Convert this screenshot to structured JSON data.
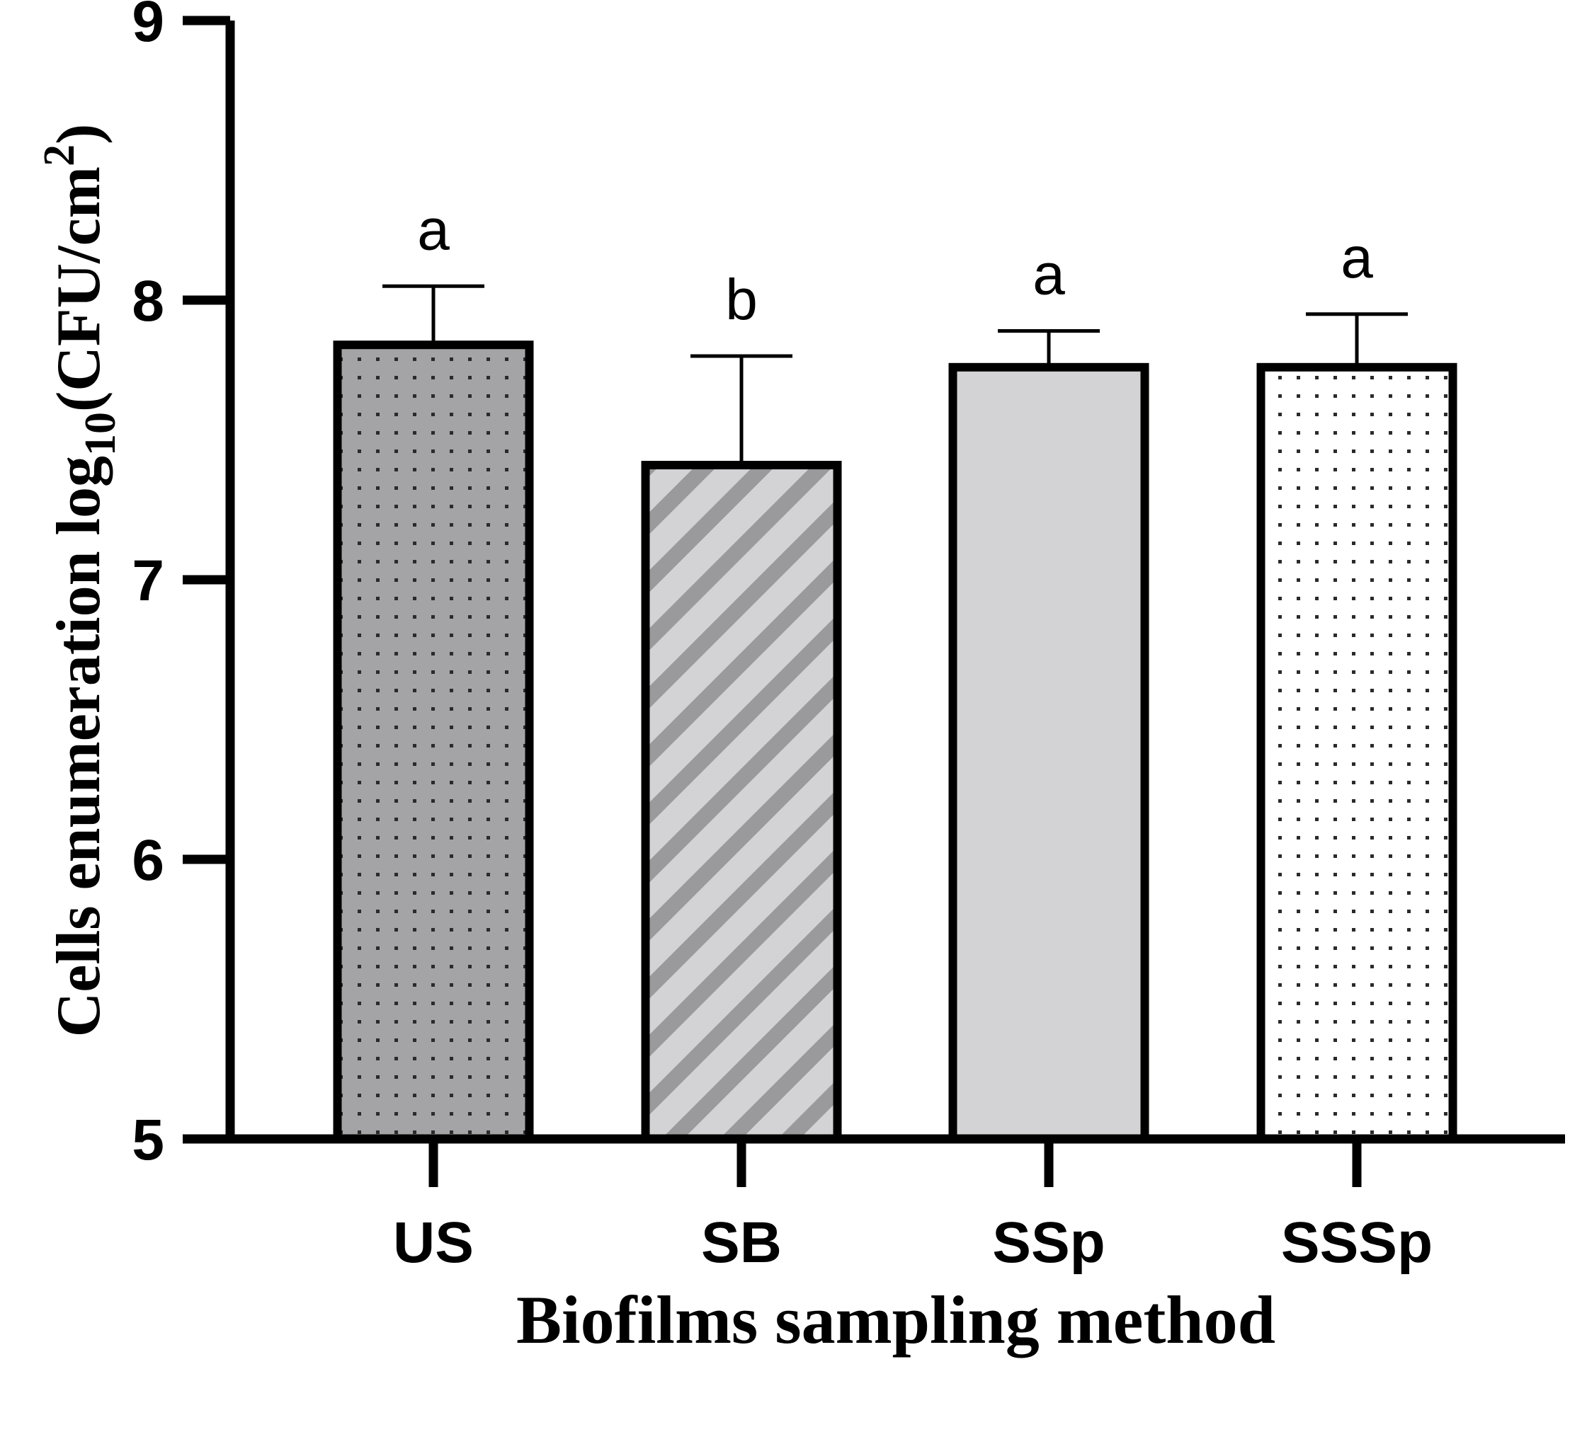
{
  "chart_data": {
    "type": "bar",
    "categories": [
      "US",
      "SB",
      "SSp",
      "SSSp"
    ],
    "values": [
      7.84,
      7.41,
      7.76,
      7.76
    ],
    "error_upper": [
      8.05,
      7.8,
      7.89,
      7.95
    ],
    "significance": [
      "a",
      "b",
      "a",
      "a"
    ],
    "fills": [
      "#a4a4a6",
      "#d3d3d5",
      "#d3d3d5",
      "#ffffff"
    ],
    "patterns": [
      "dots",
      "stripes",
      "solid",
      "dots"
    ],
    "xlabel": "Biofilms sampling method",
    "ylabel": {
      "prefix": "Cells enumeration log",
      "subscript": "10",
      "unit_open": "(CFU/cm",
      "superscript": "2",
      "unit_close": ")"
    },
    "ylim": [
      5,
      9
    ],
    "yticks": [
      "5",
      "6",
      "7",
      "8",
      "9"
    ],
    "grid": false,
    "legend": "none"
  }
}
